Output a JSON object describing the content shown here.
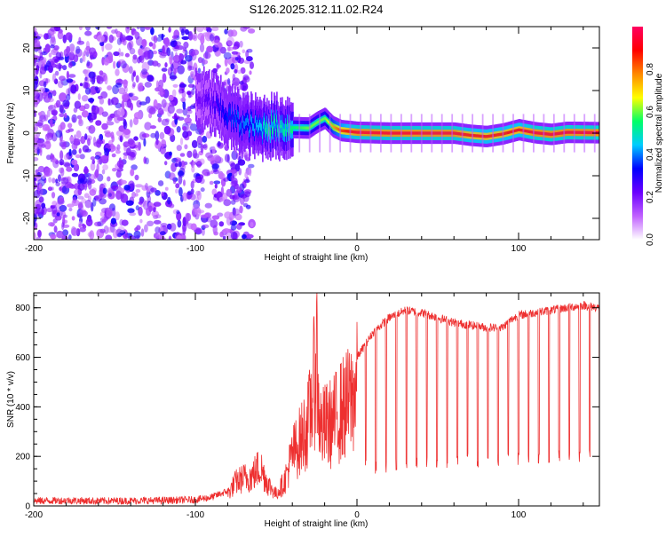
{
  "title": "S126.2025.312.11.02.R24",
  "chart_data": [
    {
      "type": "heatmap",
      "xlabel": "Height of straight line (km)",
      "ylabel": "Frequency (Hz)",
      "xlim": [
        -200,
        150
      ],
      "ylim": [
        -25,
        25
      ],
      "xticks": [
        -200,
        -100,
        0,
        100
      ],
      "yticks": [
        -20,
        -10,
        0,
        10,
        20
      ],
      "colorbar": {
        "label": "Normalized spectral amplitude",
        "range": [
          0,
          1
        ],
        "ticks": [
          "0.0",
          "0.2",
          "0.4",
          "0.6",
          "0.8"
        ],
        "tick_values": [
          0,
          0.2,
          0.4,
          0.6,
          0.8
        ],
        "colors": [
          "#ffffff",
          "#c060ff",
          "#6a00ff",
          "#0000ff",
          "#00ccff",
          "#00ff66",
          "#ffff00",
          "#ff8800",
          "#ff0000",
          "#ff0060"
        ]
      },
      "track": {
        "description": "carrier line near 0 Hz",
        "x": [
          -100,
          -90,
          -80,
          -70,
          -60,
          -55,
          -50,
          -40,
          -30,
          -25,
          -20,
          -15,
          -10,
          0,
          20,
          40,
          60,
          70,
          80,
          90,
          100,
          110,
          120,
          130,
          150
        ],
        "y": [
          8,
          7,
          4,
          2,
          1.2,
          1.8,
          1.5,
          1.3,
          1.2,
          2.5,
          3.5,
          1.5,
          0.6,
          0.2,
          0,
          0,
          0,
          -0.5,
          -0.8,
          -0.2,
          0.8,
          0.1,
          -0.3,
          0.2,
          0.1
        ],
        "amplitude": [
          0.2,
          0.25,
          0.35,
          0.4,
          0.45,
          0.55,
          0.5,
          0.55,
          0.6,
          0.6,
          0.6,
          0.75,
          0.85,
          0.95,
          0.95,
          0.95,
          0.95,
          0.9,
          0.9,
          0.9,
          0.9,
          0.95,
          0.95,
          0.95,
          0.95
        ]
      }
    },
    {
      "type": "line",
      "xlabel": "Height of straight line (km)",
      "ylabel": "SNR (10 * v/v)",
      "xlim": [
        -200,
        150
      ],
      "ylim": [
        0,
        860
      ],
      "xticks": [
        -200,
        -100,
        0,
        100
      ],
      "yticks": [
        0,
        200,
        400,
        600,
        800
      ],
      "color": "#ee3030",
      "series": [
        {
          "name": "SNR",
          "x": [
            -200,
            -180,
            -160,
            -140,
            -120,
            -100,
            -90,
            -80,
            -75,
            -70,
            -65,
            -60,
            -55,
            -50,
            -45,
            -40,
            -35,
            -30,
            -28,
            -26,
            -25,
            -24,
            -22,
            -20,
            -15,
            -10,
            -5,
            0,
            5,
            10,
            15,
            20,
            30,
            40,
            50,
            60,
            70,
            80,
            90,
            95,
            100,
            110,
            120,
            130,
            140,
            150
          ],
          "values": [
            20,
            22,
            20,
            21,
            22,
            25,
            35,
            60,
            120,
            140,
            150,
            200,
            110,
            60,
            120,
            260,
            330,
            420,
            540,
            650,
            855,
            520,
            380,
            400,
            420,
            480,
            520,
            600,
            650,
            700,
            730,
            760,
            790,
            780,
            760,
            740,
            730,
            720,
            720,
            750,
            770,
            780,
            790,
            800,
            810,
            800
          ],
          "dropout_start_km": 5,
          "dropout_spacing_km": 6.3,
          "dropout_floor_values": [
            160,
            170,
            175,
            180,
            185,
            190,
            195,
            200,
            205,
            210
          ]
        }
      ]
    }
  ]
}
